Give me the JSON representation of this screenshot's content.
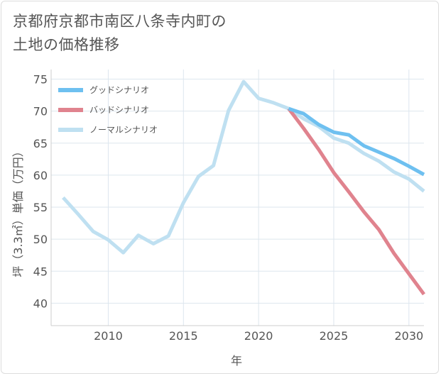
{
  "title_lines": [
    "京都府京都市南区八条寺内町の",
    "土地の価格推移"
  ],
  "chart_data": {
    "type": "line",
    "xlabel": "年",
    "ylabel": "坪（3.3㎡）単価（万円）",
    "xlim": [
      2006.2,
      2031
    ],
    "ylim": [
      36.5,
      76.5
    ],
    "x_ticks": [
      2010,
      2015,
      2020,
      2025,
      2030
    ],
    "y_ticks": [
      40,
      45,
      50,
      55,
      60,
      65,
      70,
      75
    ],
    "grid": true,
    "legend_position": "top-left",
    "series": [
      {
        "name": "グッドシナリオ",
        "color": "#6ec0f0",
        "x": [
          2022,
          2023,
          2024,
          2025,
          2026,
          2027,
          2028,
          2029,
          2030,
          2031
        ],
        "values": [
          70.4,
          69.6,
          67.9,
          66.7,
          66.3,
          64.6,
          63.6,
          62.6,
          61.4,
          60.1
        ]
      },
      {
        "name": "バッドシナリオ",
        "color": "#e0838e",
        "x": [
          2022,
          2023,
          2024,
          2025,
          2026,
          2027,
          2028,
          2029,
          2030,
          2031
        ],
        "values": [
          70.4,
          67.3,
          64.0,
          60.4,
          57.4,
          54.3,
          51.5,
          47.8,
          44.6,
          41.4
        ]
      },
      {
        "name": "ノーマルシナリオ",
        "color": "#bfe0f1",
        "x": [
          2007,
          2008,
          2009,
          2010,
          2011,
          2012,
          2013,
          2014,
          2015,
          2016,
          2017,
          2018,
          2019,
          2020,
          2021,
          2022,
          2023,
          2024,
          2025,
          2026,
          2027,
          2028,
          2029,
          2030,
          2031
        ],
        "values": [
          56.5,
          53.9,
          51.2,
          49.9,
          47.9,
          50.6,
          49.3,
          50.5,
          55.7,
          59.8,
          61.5,
          70.1,
          74.6,
          72.0,
          71.3,
          70.4,
          68.8,
          67.6,
          65.8,
          65.0,
          63.4,
          62.2,
          60.5,
          59.4,
          57.5
        ]
      }
    ]
  }
}
